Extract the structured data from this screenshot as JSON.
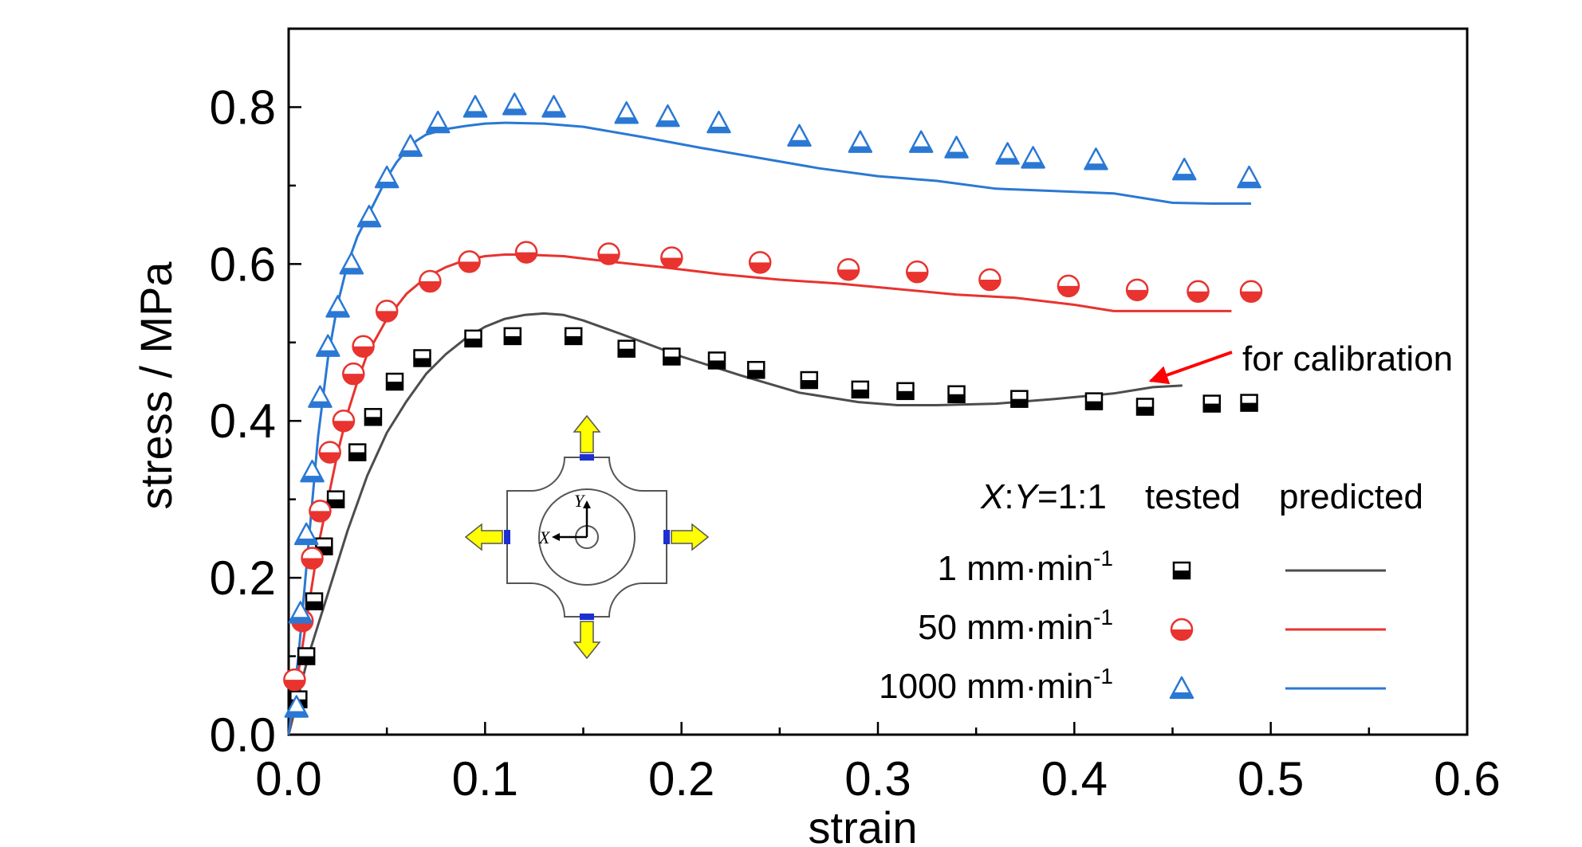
{
  "chart_data": {
    "type": "line",
    "title": "",
    "xlabel": "strain",
    "ylabel": "stress / MPa",
    "xlim": [
      0,
      0.6
    ],
    "ylim": [
      0,
      0.9
    ],
    "x_ticks": [
      "0.0",
      "0.1",
      "0.2",
      "0.3",
      "0.4",
      "0.5",
      "0.6"
    ],
    "y_ticks": [
      "0.0",
      "0.2",
      "0.4",
      "0.6",
      "0.8"
    ],
    "grid": false,
    "legend": {
      "position": "bottom-right",
      "header": {
        "ratio_x": "X",
        "ratio_y": "Y",
        "ratio_value": "=1:1",
        "tested": "tested",
        "predicted": "predicted"
      }
    },
    "annotation": "for calibration",
    "inset_labels": {
      "x": "X",
      "y": "Y"
    },
    "series": [
      {
        "name": "1 mm·min",
        "name_base": "1 mm·min",
        "name_exp": "-1",
        "color": "#000000",
        "line_color": "#4d4d4d",
        "marker": "half-square",
        "tested": {
          "x": [
            0.005,
            0.009,
            0.013,
            0.018,
            0.024,
            0.035,
            0.043,
            0.054,
            0.068,
            0.094,
            0.114,
            0.145,
            0.172,
            0.195,
            0.218,
            0.238,
            0.265,
            0.291,
            0.314,
            0.34,
            0.372,
            0.41,
            0.436,
            0.47,
            0.489
          ],
          "y": [
            0.045,
            0.1,
            0.17,
            0.24,
            0.3,
            0.36,
            0.405,
            0.45,
            0.48,
            0.505,
            0.508,
            0.508,
            0.492,
            0.482,
            0.477,
            0.465,
            0.452,
            0.44,
            0.438,
            0.434,
            0.428,
            0.425,
            0.418,
            0.422,
            0.423
          ]
        },
        "predicted": {
          "x": [
            0.0,
            0.01,
            0.02,
            0.03,
            0.04,
            0.05,
            0.06,
            0.07,
            0.08,
            0.09,
            0.1,
            0.11,
            0.12,
            0.13,
            0.14,
            0.15,
            0.17,
            0.2,
            0.23,
            0.26,
            0.29,
            0.31,
            0.33,
            0.36,
            0.39,
            0.42,
            0.44,
            0.455
          ],
          "y": [
            0.0,
            0.1,
            0.18,
            0.26,
            0.33,
            0.385,
            0.425,
            0.46,
            0.485,
            0.505,
            0.52,
            0.53,
            0.535,
            0.537,
            0.535,
            0.528,
            0.51,
            0.482,
            0.458,
            0.436,
            0.424,
            0.42,
            0.42,
            0.422,
            0.428,
            0.435,
            0.443,
            0.445
          ]
        }
      },
      {
        "name": "50 mm·min",
        "name_base": "50 mm·min",
        "name_exp": "-1",
        "color": "#e8332f",
        "line_color": "#e8332f",
        "marker": "half-circle",
        "tested": {
          "x": [
            0.003,
            0.007,
            0.012,
            0.016,
            0.021,
            0.028,
            0.033,
            0.038,
            0.05,
            0.072,
            0.092,
            0.121,
            0.163,
            0.195,
            0.24,
            0.285,
            0.32,
            0.357,
            0.397,
            0.432,
            0.463,
            0.49
          ],
          "y": [
            0.07,
            0.145,
            0.225,
            0.285,
            0.36,
            0.4,
            0.46,
            0.495,
            0.54,
            0.578,
            0.603,
            0.615,
            0.613,
            0.608,
            0.602,
            0.593,
            0.59,
            0.58,
            0.572,
            0.567,
            0.565,
            0.565
          ]
        },
        "predicted": {
          "x": [
            0.0,
            0.005,
            0.01,
            0.015,
            0.02,
            0.025,
            0.03,
            0.035,
            0.04,
            0.05,
            0.06,
            0.07,
            0.08,
            0.09,
            0.1,
            0.11,
            0.12,
            0.14,
            0.16,
            0.19,
            0.22,
            0.25,
            0.28,
            0.31,
            0.34,
            0.37,
            0.4,
            0.42,
            0.45,
            0.48
          ],
          "y": [
            0.0,
            0.08,
            0.16,
            0.24,
            0.3,
            0.36,
            0.41,
            0.45,
            0.485,
            0.53,
            0.562,
            0.583,
            0.596,
            0.605,
            0.61,
            0.612,
            0.612,
            0.61,
            0.604,
            0.596,
            0.587,
            0.58,
            0.575,
            0.568,
            0.561,
            0.557,
            0.548,
            0.54,
            0.54,
            0.54
          ]
        }
      },
      {
        "name": "1000 mm·min",
        "name_base": "1000 mm·min",
        "name_exp": "-1",
        "color": "#2a78d4",
        "line_color": "#2a78d4",
        "marker": "triangle",
        "tested": {
          "x": [
            0.004,
            0.006,
            0.009,
            0.012,
            0.016,
            0.02,
            0.025,
            0.032,
            0.041,
            0.05,
            0.062,
            0.076,
            0.095,
            0.115,
            0.135,
            0.172,
            0.193,
            0.219,
            0.26,
            0.291,
            0.322,
            0.34,
            0.366,
            0.379,
            0.411,
            0.456,
            0.489
          ],
          "y": [
            0.035,
            0.155,
            0.255,
            0.335,
            0.43,
            0.495,
            0.545,
            0.6,
            0.66,
            0.71,
            0.75,
            0.78,
            0.8,
            0.803,
            0.8,
            0.792,
            0.788,
            0.78,
            0.763,
            0.755,
            0.755,
            0.748,
            0.74,
            0.735,
            0.733,
            0.72,
            0.71
          ]
        },
        "predicted": {
          "x": [
            0.0,
            0.005,
            0.01,
            0.015,
            0.02,
            0.025,
            0.03,
            0.035,
            0.04,
            0.045,
            0.05,
            0.055,
            0.06,
            0.065,
            0.07,
            0.08,
            0.09,
            0.1,
            0.11,
            0.13,
            0.15,
            0.18,
            0.21,
            0.24,
            0.27,
            0.3,
            0.33,
            0.36,
            0.39,
            0.42,
            0.45,
            0.47,
            0.49
          ],
          "y": [
            0.0,
            0.1,
            0.24,
            0.38,
            0.48,
            0.55,
            0.6,
            0.635,
            0.66,
            0.685,
            0.71,
            0.73,
            0.745,
            0.757,
            0.765,
            0.772,
            0.776,
            0.779,
            0.78,
            0.779,
            0.775,
            0.762,
            0.748,
            0.735,
            0.722,
            0.712,
            0.706,
            0.696,
            0.693,
            0.69,
            0.678,
            0.677,
            0.677
          ]
        }
      }
    ]
  }
}
